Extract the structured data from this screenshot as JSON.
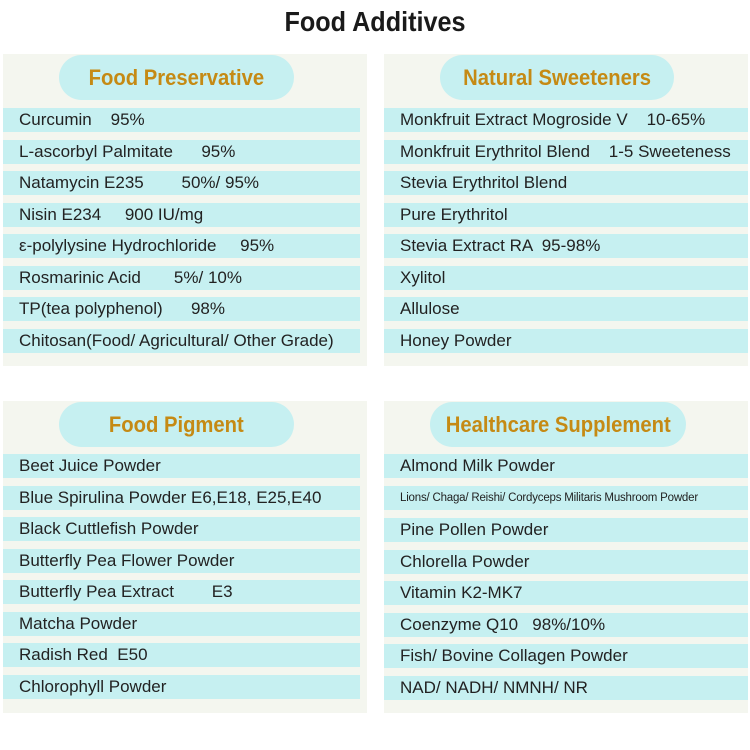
{
  "title": "Food Additives",
  "sections": [
    {
      "heading": "Food Preservative",
      "items": [
        "Curcumin    95%",
        "L-ascorbyl Palmitate      95%",
        "Natamycin E235        50%/ 95%",
        "Nisin E234     900 IU/mg",
        "ε-polylysine Hydrochloride     95%",
        "Rosmarinic Acid       5%/ 10%",
        "TP(tea polyphenol)      98%",
        "Chitosan(Food/ Agricultural/ Other Grade)"
      ]
    },
    {
      "heading": "Natural Sweeteners",
      "items": [
        "Monkfruit Extract Mogroside V    10-65%",
        "Monkfruit Erythritol Blend    1-5 Sweeteness",
        "Stevia Erythritol Blend",
        "Pure Erythritol",
        "Stevia Extract RA  95-98%",
        "Xylitol",
        "Allulose",
        "Honey Powder"
      ]
    },
    {
      "heading": "Food Pigment",
      "items": [
        "Beet Juice Powder",
        "Blue Spirulina Powder E6,E18, E25,E40",
        "Black Cuttlefish Powder",
        "Butterfly Pea Flower Powder",
        "Butterfly Pea Extract        E3",
        "Matcha Powder",
        "Radish Red  E50",
        "Chlorophyll Powder"
      ]
    },
    {
      "heading": "Healthcare Supplement",
      "items": [
        "Almond Milk Powder",
        "Lions/ Chaga/ Reishi/ Cordyceps Militaris Mushroom Powder",
        "Pine Pollen Powder",
        "Chlorella Powder",
        "Vitamin K2-MK7",
        "Coenzyme Q10   98%/10%",
        "Fish/ Bovine Collagen Powder",
        "NAD/ NADH/ NMNH/ NR"
      ]
    }
  ]
}
